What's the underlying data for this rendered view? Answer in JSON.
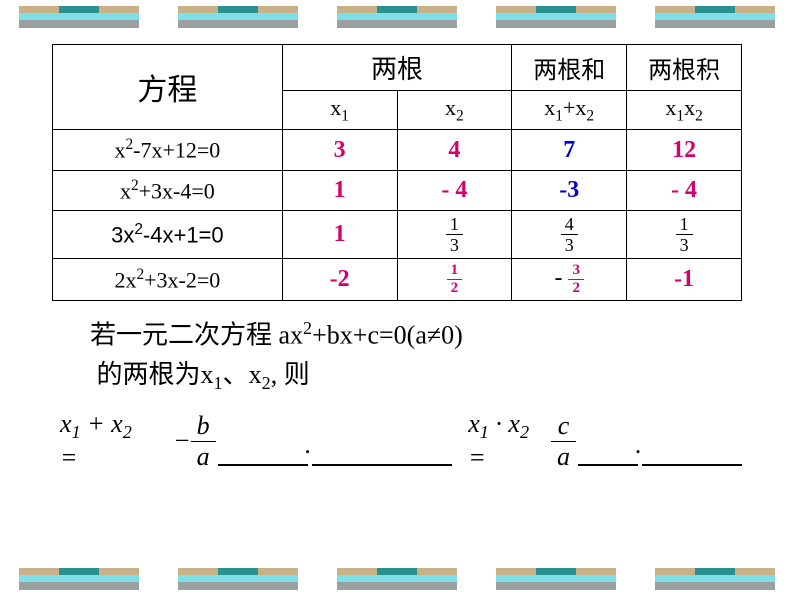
{
  "decor": {
    "colors": {
      "tan": "#c8b088",
      "teal": "#2a9090",
      "cyan": "#7de0e8",
      "grey": "#9aa0a0"
    }
  },
  "table": {
    "headers": {
      "equation": "方程",
      "two_roots": "两根",
      "sum": "两根和",
      "product": "两根积",
      "x1": "x",
      "x1_sub": "1",
      "x2": "x",
      "x2_sub": "2",
      "sum_expr": "x",
      "sum_sub1": "1",
      "sum_plus": "+x",
      "sum_sub2": "2",
      "prod_expr": "x",
      "prod_sub1": "1",
      "prod_x": "x",
      "prod_sub2": "2"
    },
    "rows": [
      {
        "eq_pre": "x",
        "eq_sup1": "2",
        "eq_mid": "-7x+12=0",
        "x1": "3",
        "x2": "4",
        "sum": "7",
        "prod": "12",
        "x1_color": "pink",
        "x2_color": "pink",
        "sum_color": "blue",
        "prod_color": "pink"
      },
      {
        "eq_pre": "x",
        "eq_sup1": "2",
        "eq_mid": "+3x-4=0",
        "x1": "1",
        "x2": "- 4",
        "sum": "-3",
        "prod": "- 4",
        "x1_color": "pink",
        "x2_color": "pink",
        "sum_color": "blue",
        "prod_color": "pink"
      },
      {
        "eq_pre": "3x",
        "eq_sup1": "2",
        "eq_mid": "-4x+1=0",
        "x1": "1",
        "x1_color": "pink"
      },
      {
        "eq_pre": "2x",
        "eq_sup1": "2",
        "eq_mid": "+3x-2=0",
        "x1": "-2",
        "prod": "-1",
        "x1_color": "pink",
        "prod_color": "pink"
      }
    ],
    "row3_fracs": {
      "x2n": "1",
      "x2d": "3",
      "sumn": "4",
      "sumd": "3",
      "prodn": "1",
      "prodd": "3"
    },
    "row4_fracs": {
      "x2n": "1",
      "x2d": "2",
      "sumn": "3",
      "sumd": "2",
      "sum_prefix": "- "
    }
  },
  "below": {
    "line1_a": "若一元二次方程  ax",
    "sup1": "2",
    "line1_b": "+bx+c=0(a≠0)",
    "line2": "的两根为x",
    "sub1": "1",
    "line2_b": "、x",
    "sub2": "2",
    "line2_c": ", 则"
  },
  "formula": {
    "f1_a": "x",
    "f1_s1": "1",
    "f1_b": " + x",
    "f1_s2": "2",
    "f1_c": " = ",
    "neg": "− ",
    "bn": "b",
    "bd": "a",
    "f2_a": "x",
    "f2_s1": "1",
    "f2_b": " · x",
    "f2_s2": "2",
    "f2_c": " = ",
    "cn": "c",
    "cd": "a",
    "dot": "."
  }
}
